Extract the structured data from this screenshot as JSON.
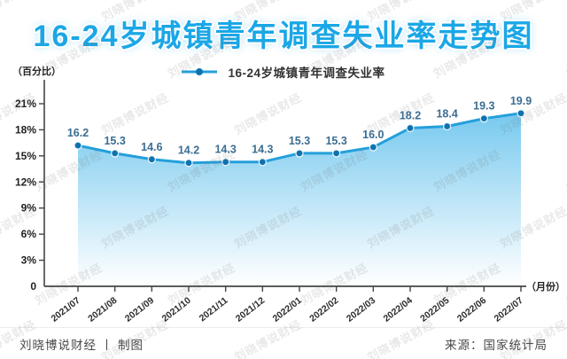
{
  "title": "16-24岁城镇青年调查失业率走势图",
  "legend": {
    "label": "16-24岁城镇青年调查失业率"
  },
  "chart_data": {
    "type": "line",
    "title": "16-24岁城镇青年调查失业率走势图",
    "x": [
      "2021/07",
      "2021/08",
      "2021/09",
      "2021/10",
      "2021/11",
      "2021/12",
      "2022/01",
      "2022/02",
      "2022/03",
      "2022/04",
      "2022/05",
      "2022/06",
      "2022/07"
    ],
    "values": [
      16.2,
      15.3,
      14.6,
      14.2,
      14.3,
      14.3,
      15.3,
      15.3,
      16.0,
      18.2,
      18.4,
      19.3,
      19.9
    ],
    "xlabel": "（月份）",
    "ylabel": "（百分比）",
    "ylim": [
      0,
      22.5
    ],
    "y_ticks": {
      "values": [
        3,
        6,
        9,
        12,
        15,
        18,
        21
      ],
      "labels": [
        "3%",
        "6%",
        "9%",
        "12%",
        "15%",
        "18%",
        "21%"
      ],
      "origin_label": "0"
    },
    "grid": false,
    "legend_position": "top-center",
    "area_fill": true,
    "data_labels_decimals": 1,
    "colors": {
      "title_blue": "#1ba7e6",
      "line": "#249fdb",
      "marker": "#0d72b0",
      "data_label": "#3b6d92",
      "area_top": "#6fc6ee",
      "area_bottom": "#ffffff",
      "axis": "#444444",
      "tick_label": "#1f1f1f",
      "x_tick_label": "#2e2e2e"
    }
  },
  "footer": {
    "left": "刘晓博说财经 丨 制图",
    "right": "来源：国家统计局"
  },
  "watermark": {
    "text": "刘晓博说财经"
  }
}
